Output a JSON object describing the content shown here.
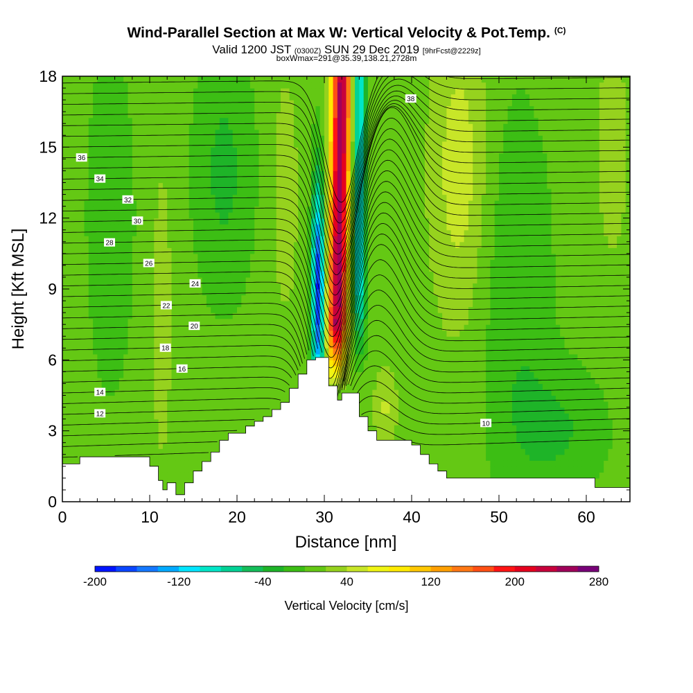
{
  "title": {
    "main": "Wind-Parallel Section at Max W: Vertical Velocity & Pot.Temp.",
    "mark": "(C)",
    "valid_pre": "Valid 1200 JST",
    "valid_utc": "(0300Z)",
    "valid_date": "SUN 29 Dec 2019",
    "forecast": "[9hrFcst@2229z]",
    "box_info": "boxWmax=291@35.39,138.21,2728m"
  },
  "chart_data": {
    "type": "heatmap",
    "xlabel": "Distance [nm]",
    "ylabel": "Height [Kft MSL]",
    "xlim": [
      0,
      65
    ],
    "ylim": [
      0,
      18
    ],
    "x_ticks": [
      0,
      10,
      20,
      30,
      40,
      50,
      60
    ],
    "y_ticks": [
      0,
      3,
      6,
      9,
      12,
      15,
      18
    ],
    "colorbar": {
      "label": "Vertical Velocity [cm/s]",
      "min": -200,
      "max": 280,
      "step": 20,
      "tick_labels": [
        -200,
        -120,
        -40,
        40,
        120,
        200,
        280
      ],
      "colors": [
        "#0014ff",
        "#0a46ff",
        "#1478ff",
        "#00aaff",
        "#00e6ff",
        "#00e6c8",
        "#00d296",
        "#14be5a",
        "#1eb428",
        "#3cbe14",
        "#64c814",
        "#96d21e",
        "#c8e628",
        "#f0f514",
        "#ffeb00",
        "#ffc800",
        "#ffa000",
        "#ff7814",
        "#ff5014",
        "#ff1414",
        "#e6001e",
        "#c8003c",
        "#a0005a",
        "#780078"
      ]
    },
    "terrain": [
      [
        0,
        1.6
      ],
      [
        1,
        1.6
      ],
      [
        2,
        1.9
      ],
      [
        3,
        1.9
      ],
      [
        4,
        1.9
      ],
      [
        5,
        1.9
      ],
      [
        6,
        1.9
      ],
      [
        7,
        1.9
      ],
      [
        8,
        1.9
      ],
      [
        9,
        1.9
      ],
      [
        10,
        1.5
      ],
      [
        11,
        0.9
      ],
      [
        11.5,
        0.5
      ],
      [
        12,
        0.8
      ],
      [
        13,
        0.3
      ],
      [
        14,
        0.8
      ],
      [
        15,
        1.3
      ],
      [
        16,
        1.7
      ],
      [
        17,
        2.1
      ],
      [
        18,
        2.6
      ],
      [
        19,
        2.9
      ],
      [
        20,
        2.9
      ],
      [
        21,
        3.2
      ],
      [
        22,
        3.4
      ],
      [
        23,
        3.6
      ],
      [
        24,
        3.9
      ],
      [
        25,
        4.2
      ],
      [
        26,
        4.8
      ],
      [
        27,
        5.4
      ],
      [
        28,
        6.0
      ],
      [
        29,
        6.1
      ],
      [
        30,
        6.1
      ],
      [
        30.5,
        4.9
      ],
      [
        31.5,
        4.3
      ],
      [
        32,
        4.6
      ],
      [
        33,
        4.6
      ],
      [
        34,
        3.6
      ],
      [
        35,
        3.0
      ],
      [
        36,
        2.6
      ],
      [
        37,
        2.6
      ],
      [
        38,
        2.6
      ],
      [
        39,
        2.6
      ],
      [
        40,
        2.4
      ],
      [
        41,
        2.0
      ],
      [
        42,
        1.6
      ],
      [
        43,
        1.3
      ],
      [
        44,
        1.0
      ],
      [
        48,
        1.0
      ],
      [
        52,
        1.0
      ],
      [
        56,
        1.0
      ],
      [
        60,
        1.0
      ],
      [
        61,
        0.6
      ],
      [
        64,
        0.6
      ],
      [
        65,
        0.6
      ]
    ],
    "theta_contours": [
      {
        "label": "10",
        "label_x": 48.5
      },
      {
        "label": "12",
        "label_x": 4.3
      },
      {
        "label": "14",
        "label_x": 4.3
      },
      {
        "label": "16",
        "label_x": 13.7
      },
      {
        "label": "18",
        "label_x": 11.8
      },
      {
        "label": "20",
        "label_x": 15.1
      },
      {
        "label": "22",
        "label_x": 11.9
      },
      {
        "label": "24",
        "label_x": 15.2
      },
      {
        "label": "26",
        "label_x": 9.9
      },
      {
        "label": "28",
        "label_x": 5.4
      },
      {
        "label": "30",
        "label_x": 8.6
      },
      {
        "label": "32",
        "label_x": 7.5
      },
      {
        "label": "34",
        "label_x": 4.3
      },
      {
        "label": "36",
        "label_x": 2.2
      },
      {
        "label": "38",
        "label_x": 39.9
      }
    ]
  }
}
